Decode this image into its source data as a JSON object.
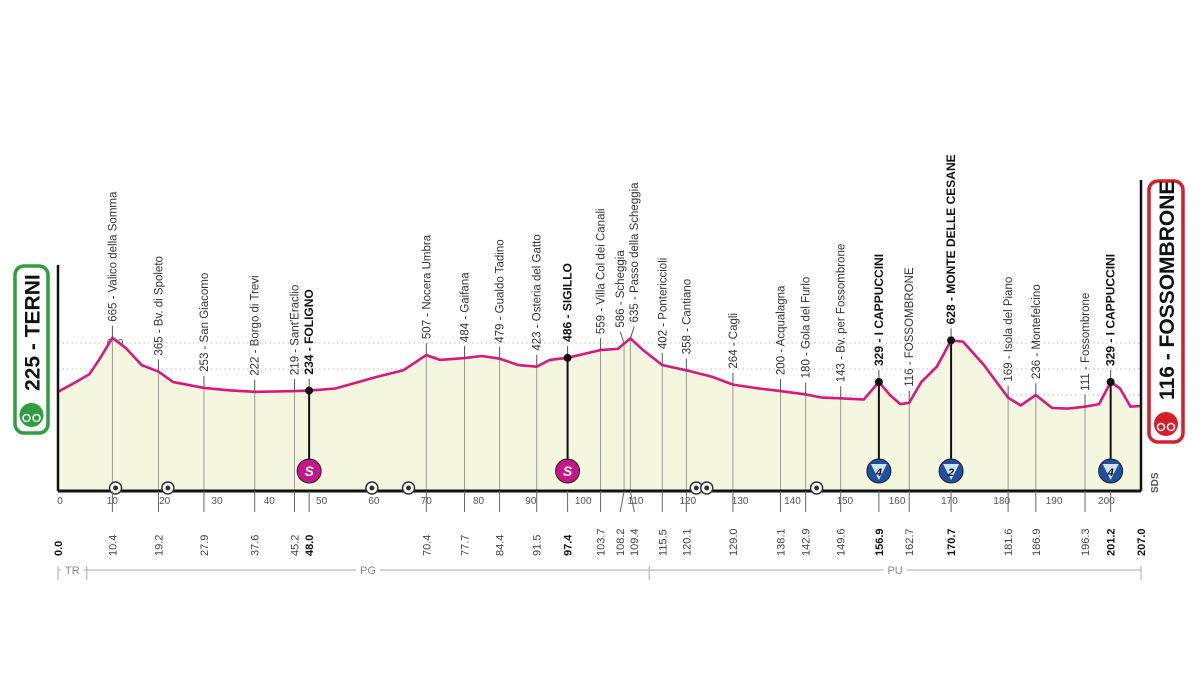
{
  "chart_data": {
    "type": "area",
    "xlabel": "",
    "ylabel": "",
    "xlim": [
      0,
      207
    ],
    "x_ticks": [
      0,
      10,
      20,
      30,
      40,
      50,
      60,
      70,
      80,
      90,
      100,
      110,
      120,
      130,
      140,
      150,
      160,
      170,
      180,
      190,
      200
    ],
    "y_ticks": [
      0,
      200,
      400,
      600
    ],
    "grid": true,
    "colors": {
      "line": "#d8187f",
      "fill": "#f5f6e0",
      "start": "#2e9e3e",
      "finish": "#d4202a",
      "kom": "#1f4fa0",
      "sprint": "#c5168a"
    },
    "start": {
      "elev": "225",
      "name": "TERNI",
      "label": "225 - TERNI",
      "km": "0.0"
    },
    "finish": {
      "elev": "116",
      "name": "FOSSOMBRONE",
      "label": "116 - FOSSOMBRONE",
      "km": "207.0"
    },
    "profile": [
      [
        0,
        225
      ],
      [
        3,
        290
      ],
      [
        6,
        360
      ],
      [
        8,
        480
      ],
      [
        10.4,
        640
      ],
      [
        13,
        560
      ],
      [
        16,
        430
      ],
      [
        19.2,
        380
      ],
      [
        22,
        300
      ],
      [
        27.9,
        255
      ],
      [
        33,
        235
      ],
      [
        37.6,
        225
      ],
      [
        42,
        228
      ],
      [
        45.2,
        230
      ],
      [
        48,
        234
      ],
      [
        53,
        250
      ],
      [
        61,
        340
      ],
      [
        66,
        390
      ],
      [
        70.4,
        507
      ],
      [
        73,
        470
      ],
      [
        77.7,
        484
      ],
      [
        81,
        500
      ],
      [
        84.4,
        479
      ],
      [
        88,
        430
      ],
      [
        91.5,
        418
      ],
      [
        94,
        470
      ],
      [
        97.4,
        486
      ],
      [
        101,
        520
      ],
      [
        103.7,
        545
      ],
      [
        107,
        555
      ],
      [
        109.4,
        635
      ],
      [
        112,
        540
      ],
      [
        115.5,
        430
      ],
      [
        120.1,
        390
      ],
      [
        125,
        340
      ],
      [
        129,
        280
      ],
      [
        134,
        250
      ],
      [
        138.1,
        230
      ],
      [
        142.9,
        205
      ],
      [
        146,
        180
      ],
      [
        149.6,
        175
      ],
      [
        154,
        165
      ],
      [
        156.9,
        300
      ],
      [
        159,
        200
      ],
      [
        161,
        130
      ],
      [
        162.7,
        140
      ],
      [
        165,
        300
      ],
      [
        168,
        420
      ],
      [
        170.7,
        620
      ],
      [
        173,
        610
      ],
      [
        177,
        430
      ],
      [
        181.6,
        180
      ],
      [
        184,
        120
      ],
      [
        186.9,
        200
      ],
      [
        190,
        100
      ],
      [
        193,
        95
      ],
      [
        196.3,
        110
      ],
      [
        199,
        130
      ],
      [
        201.2,
        300
      ],
      [
        203,
        250
      ],
      [
        205,
        110
      ],
      [
        207,
        116
      ]
    ],
    "waypoints": [
      {
        "km": "10.4",
        "elev": 665,
        "label": "665 - Valico della Somma"
      },
      {
        "km": "19.2",
        "elev": 365,
        "label": "365 - Bv. di Spoleto"
      },
      {
        "km": "27.9",
        "elev": 253,
        "label": "253 - San Giacomo"
      },
      {
        "km": "37.6",
        "elev": 222,
        "label": "222 - Borgo di Trevi"
      },
      {
        "km": "45.2",
        "elev": 219,
        "label": "219 - Sant'Eraclio"
      },
      {
        "km": "48.0",
        "elev": 234,
        "label": "234 - FOLIGNO",
        "bold": true,
        "marker": "sprint",
        "marker_text": "S"
      },
      {
        "km": "70.4",
        "elev": 507,
        "label": "507 - Nocera Umbra"
      },
      {
        "km": "77.7",
        "elev": 484,
        "label": "484 - Gaifana"
      },
      {
        "km": "84.4",
        "elev": 479,
        "label": "479 - Gualdo Tadino"
      },
      {
        "km": "91.5",
        "elev": 423,
        "label": "423 - Osteria del Gatto"
      },
      {
        "km": "97.4",
        "elev": 486,
        "label": "486 - SIGILLO",
        "bold": true,
        "marker": "sprint",
        "marker_text": "S"
      },
      {
        "km": "103.7",
        "elev": 559,
        "label": "559 - Villa Col dei Canali"
      },
      {
        "km": "108.2",
        "elev": 586,
        "label": "586 - Scheggia"
      },
      {
        "km": "109.4",
        "elev": 635,
        "label": "635 - Passo della Scheggia"
      },
      {
        "km": "115.5",
        "elev": 402,
        "label": "402 - Pontericcioli"
      },
      {
        "km": "120.1",
        "elev": 358,
        "label": "358 - Cantiano"
      },
      {
        "km": "129.0",
        "elev": 264,
        "label": "264 - Cagli"
      },
      {
        "km": "138.1",
        "elev": 200,
        "label": "200 - Acqualagna"
      },
      {
        "km": "142.9",
        "elev": 180,
        "label": "180 - Gola del Furlo"
      },
      {
        "km": "149.6",
        "elev": 143,
        "label": "143 - Bv. per Fossombrone"
      },
      {
        "km": "156.9",
        "elev": 329,
        "label": "329 - I CAPPUCCINI",
        "bold": true,
        "marker": "kom",
        "marker_text": "4"
      },
      {
        "km": "162.7",
        "elev": 116,
        "label": "116 - FOSSOMBRONE"
      },
      {
        "km": "170.7",
        "elev": 628,
        "label": "628 - MONTE DELLE CESANE",
        "bold": true,
        "marker": "kom",
        "marker_text": "2"
      },
      {
        "km": "181.6",
        "elev": 169,
        "label": "169 - Isola del Piano"
      },
      {
        "km": "186.9",
        "elev": 236,
        "label": "236 - Montefelcino"
      },
      {
        "km": "196.3",
        "elev": 111,
        "label": "111 - Fossombrone"
      },
      {
        "km": "201.2",
        "elev": 329,
        "label": "329 - I CAPPUCCINI",
        "bold": true,
        "marker": "kom",
        "marker_text": "4"
      }
    ],
    "feed_markers_km": [
      11,
      21,
      60,
      67,
      122,
      124,
      145
    ],
    "regions": [
      {
        "label": "TR",
        "from": 0,
        "to": 5.5
      },
      {
        "label": "PG",
        "from": 5.5,
        "to": 113
      },
      {
        "label": "PU",
        "from": 113,
        "to": 207
      }
    ],
    "logo_text": "SDS"
  }
}
